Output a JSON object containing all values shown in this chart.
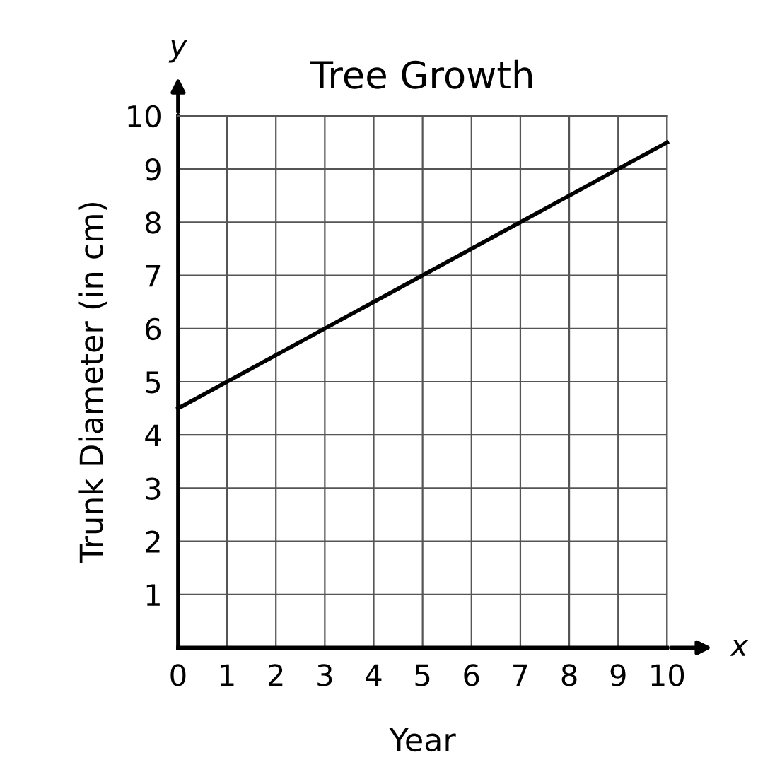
{
  "chart_data": {
    "type": "line",
    "title": "Tree Growth",
    "xlabel": "Year",
    "ylabel": "Trunk Diameter (in cm)",
    "annotations": [
      "x",
      "y"
    ],
    "x": [
      0,
      10
    ],
    "series": [
      {
        "color": "#000000",
        "values": [
          4.5,
          9.5
        ]
      }
    ],
    "xlim": [
      0,
      10
    ],
    "ylim": [
      0,
      10
    ],
    "xticks": [
      0,
      1,
      2,
      3,
      4,
      5,
      6,
      7,
      8,
      9,
      10
    ],
    "yticks": [
      {
        "value": 0,
        "label": null
      },
      1,
      2,
      3,
      4,
      5,
      6,
      7,
      8,
      9,
      10
    ],
    "grid": true,
    "marker": "none",
    "line_style": "solid"
  }
}
